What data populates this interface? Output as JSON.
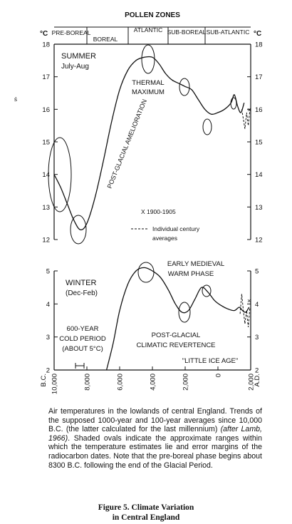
{
  "figure": {
    "zones_header": "POLLEN ZONES",
    "zones": [
      "PRE-BOREAL",
      "BOREAL",
      "ATLANTIC",
      "SUB-BOREAL",
      "SUB-ATLANTIC"
    ],
    "unit_left": "°C",
    "unit_right": "°C",
    "curve_label": "POST-GLACIAL AMELIORATION",
    "stray_mark": "ś",
    "summer": {
      "title": "SUMMER",
      "subtitle": "July-Aug",
      "ticks": [
        "18",
        "17",
        "16",
        "15",
        "14",
        "13",
        "12"
      ],
      "annotation_1": "THERMAL",
      "annotation_2": "MAXIMUM",
      "legend_x": "X  1900-1905",
      "legend_dash_1": "Individual century",
      "legend_dash_2": "averages"
    },
    "winter": {
      "title": "WINTER",
      "subtitle": "(Dec-Feb)",
      "ticks": [
        "5",
        "4",
        "3",
        "2"
      ],
      "ann_warm_1": "EARLY MEDIEVAL",
      "ann_warm_2": "WARM PHASE",
      "ann_cold_1": "600-YEAR",
      "ann_cold_2": "COLD PERIOD",
      "ann_cold_3": "(ABOUT 5°C)",
      "ann_rev_1": "POST-GLACIAL",
      "ann_rev_2": "CLIMATIC REVERTENCE",
      "ann_lia": "\"LITTLE ICE AGE\""
    },
    "xaxis": {
      "era_left": "B.C.",
      "era_right": "A.D.",
      "tick_labels": [
        "10,000",
        "8,000",
        "6,000",
        "4,000",
        "2,000",
        "0",
        "2,000"
      ]
    }
  },
  "chart_data": [
    {
      "type": "line",
      "title": "SUMMER July-Aug",
      "ylabel": "°C",
      "xlabel": "",
      "x_unit": "years (negative = B.C.)",
      "ylim": [
        12,
        18
      ],
      "xlim": [
        -10000,
        2000
      ],
      "grid": false,
      "legend": "bottom-right",
      "series": [
        {
          "name": "",
          "x": [
            -10000,
            -9600,
            -9200,
            -8800,
            -8400,
            -8000,
            -7500,
            -7000,
            -6500,
            -6000,
            -5500,
            -5000,
            -4500,
            -4000,
            -3600,
            -3200,
            -2800,
            -2400,
            -2000,
            -1600,
            -1200,
            -800,
            -400,
            0,
            400,
            800,
            1000,
            1200,
            1400,
            1600
          ],
          "y": [
            14.0,
            13.6,
            13.1,
            12.6,
            12.3,
            12.5,
            13.3,
            14.4,
            15.6,
            16.6,
            17.2,
            17.5,
            17.6,
            17.6,
            17.4,
            17.1,
            16.9,
            16.8,
            16.7,
            16.6,
            16.3,
            16.0,
            15.85,
            15.9,
            16.0,
            16.2,
            16.45,
            16.1,
            15.9,
            16.2
          ]
        },
        {
          "name": "Individual century averages",
          "x": [
            1450,
            1550,
            1650,
            1750,
            1850,
            1950
          ],
          "y": [
            16.0,
            15.7,
            15.4,
            15.9,
            15.5,
            16.0
          ]
        }
      ],
      "markers": [
        {
          "name": "1900-1905",
          "x": 1902,
          "y": 16.0
        }
      ]
    },
    {
      "type": "line",
      "title": "WINTER (Dec-Feb)",
      "ylabel": "°C",
      "xlabel": "",
      "x_unit": "years (negative = B.C.)",
      "ylim": [
        2,
        5
      ],
      "xlim": [
        -10000,
        2000
      ],
      "grid": false,
      "series": [
        {
          "name": "",
          "x": [
            -6800,
            -6400,
            -6000,
            -5500,
            -5000,
            -4500,
            -4000,
            -3500,
            -3000,
            -2600,
            -2200,
            -1800,
            -1400,
            -1000,
            -600,
            -200,
            200,
            600,
            1000,
            1300,
            1500,
            1700,
            1900
          ],
          "y": [
            2.0,
            2.8,
            3.8,
            4.6,
            5.0,
            5.1,
            5.0,
            4.8,
            4.4,
            4.0,
            3.75,
            3.8,
            4.15,
            4.5,
            4.35,
            4.1,
            3.95,
            3.85,
            3.8,
            3.9,
            3.8,
            3.75,
            3.9
          ]
        },
        {
          "name": "Individual century averages",
          "x": [
            1350,
            1450,
            1550,
            1650,
            1750,
            1850,
            1950
          ],
          "y": [
            3.7,
            4.3,
            3.8,
            3.4,
            3.8,
            3.3,
            3.9
          ]
        }
      ],
      "markers": [
        {
          "name": "1900-1905",
          "x": 1902,
          "y": 4.1
        }
      ]
    }
  ],
  "caption": {
    "seg1": "Air temperatures in the lowlands of central England. Trends of the supposed 1000-year and 100-year averages since 10,000 B.C. (the latter calculated for the last millennium) ",
    "seg2": "(after Lamb, 1966)",
    "seg3": ". Shaded ovals indicate the approximate ranges within which the temperature estimates lie and error margins of the radiocarbon dates. Note that the pre-boreal phase begins about 8300 B.C. following the end of the Glacial Period."
  },
  "fig_title_1": "Figure 5.  Climate Variation",
  "fig_title_2": "in Central England"
}
